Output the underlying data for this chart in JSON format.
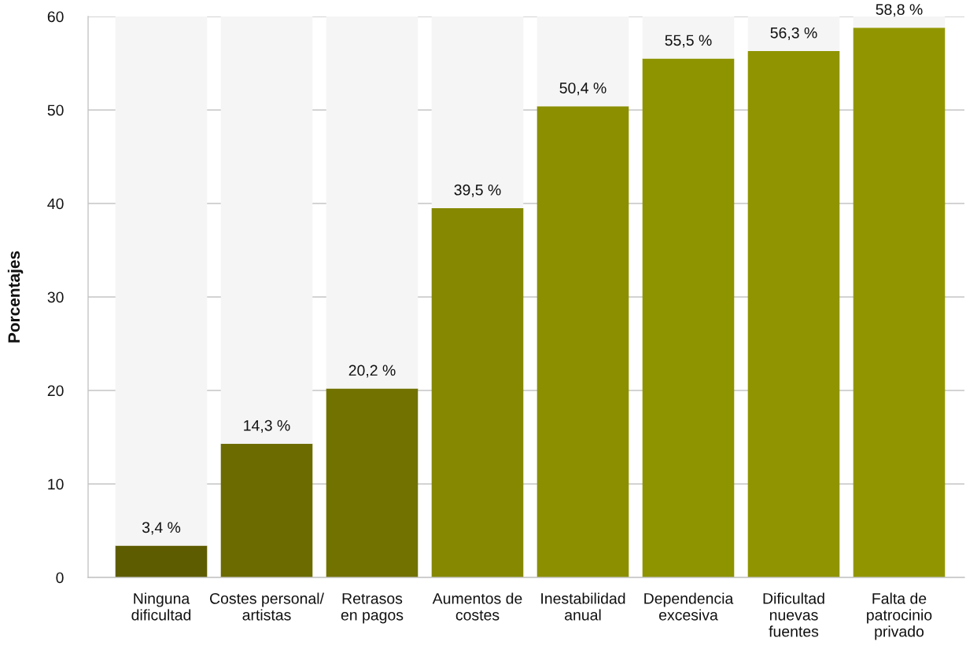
{
  "chart_data": {
    "type": "bar",
    "ylabel": "Porcentajes",
    "stacked": true,
    "categories": [
      "Ninguna\ndificultad",
      "Costes personal/\nartistas",
      "Retrasos\nen pagos",
      "Aumentos de\ncostes",
      "Inestabilidad\nanual",
      "Dependencia\nexcesiva",
      "Dificultad\nnuevas\nfuentes",
      "Falta de\npatrocinio\nprivado"
    ],
    "series": [
      {
        "colors": [
          "#5e5c00",
          "#6b6b00",
          "#717200",
          "#858800",
          "#8b8f00",
          "#8e9300",
          "#8f9400",
          "#919600"
        ],
        "values": [
          3.4,
          14.3,
          20.2,
          39.5,
          50.4,
          55.5,
          56.3,
          58.8
        ],
        "value_labels": [
          "3,4 %",
          "14,3 %",
          "20,2 %",
          "39,5 %",
          "50,4 %",
          "55,5 %",
          "56,3 %",
          "58,8 %"
        ]
      },
      {
        "color": "#f5f5f5",
        "values": [
          56.6,
          45.7,
          39.8,
          20.5,
          9.6,
          4.5,
          3.7,
          1.2
        ]
      }
    ],
    "ylim": [
      0,
      60
    ],
    "yticks": [
      0,
      10,
      20,
      30,
      40,
      50,
      60
    ],
    "grid": "y"
  }
}
